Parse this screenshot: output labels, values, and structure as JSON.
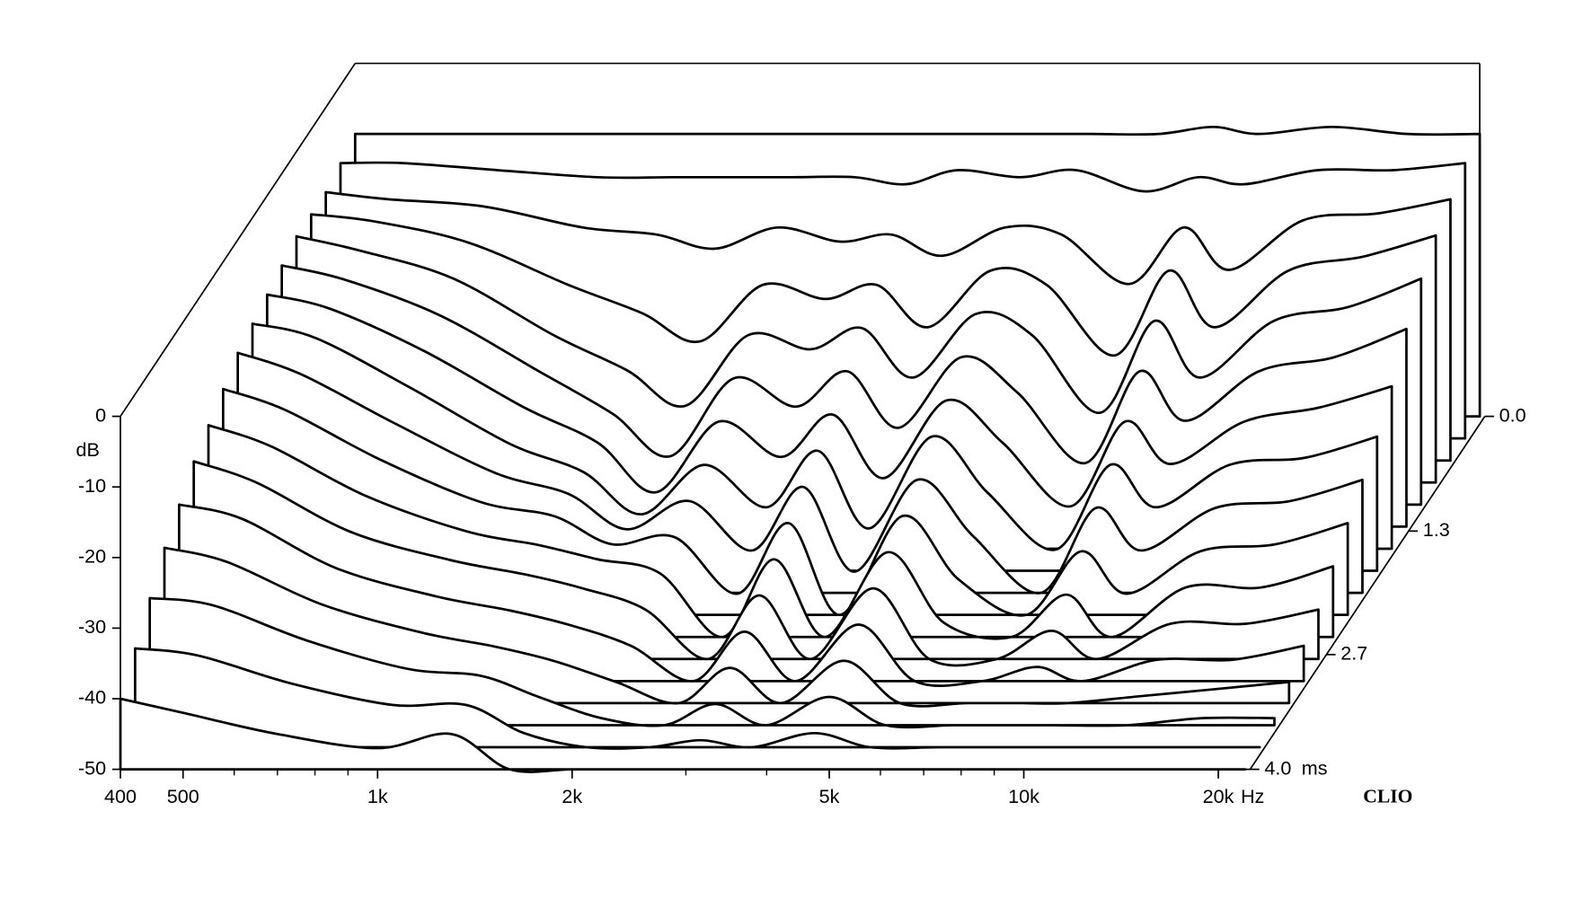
{
  "chart_data": {
    "type": "waterfall",
    "x": [
      400,
      500,
      700,
      1000,
      1300,
      1600,
      2000,
      2500,
      3000,
      3600,
      4500,
      5500,
      7000,
      8500,
      10000,
      13000,
      17000,
      22000
    ],
    "xlim": [
      400,
      22400
    ],
    "log_x": true,
    "xticks": [
      400,
      500,
      {
        "value": 1000,
        "label": "1k"
      },
      {
        "value": 2000,
        "label": "2k"
      },
      {
        "value": 5000,
        "label": "5k"
      },
      {
        "value": 10000,
        "label": "10k"
      },
      {
        "value": 20000,
        "label": "20k"
      }
    ],
    "xminor_ticks": [
      600,
      700,
      800,
      900,
      3000,
      4000,
      6000,
      7000,
      8000,
      9000
    ],
    "x_unit": "Hz",
    "ylabel": "dB",
    "ylim": [
      -50,
      0
    ],
    "yticks": [
      0,
      -10,
      -20,
      -30,
      -40,
      -50
    ],
    "zlim": [
      0,
      4
    ],
    "zticks": [
      {
        "value": 0,
        "label": "0.0"
      },
      {
        "value": 1.3,
        "label": "1.3"
      },
      {
        "value": 2.7,
        "label": "2.7"
      },
      {
        "value": 4,
        "label": "4.0"
      }
    ],
    "z_unit": "ms",
    "color": "#000000",
    "logo": "CLIO",
    "slices": [
      {
        "time": 0,
        "values": [
          -10,
          -10,
          -10,
          -10,
          -10,
          -10,
          -10,
          -10,
          -10,
          -10,
          -10,
          -10,
          -10,
          -9,
          -10,
          -9,
          -10,
          -10
        ]
      },
      {
        "time": 0.25,
        "values": [
          -11,
          -11,
          -12,
          -13,
          -13,
          -13,
          -13,
          -13,
          -14,
          -12,
          -13,
          -12,
          -15,
          -13,
          -14,
          -12,
          -12,
          -11
        ]
      },
      {
        "time": 0.5,
        "values": [
          -12,
          -13,
          -14,
          -17,
          -18,
          -20,
          -17,
          -19,
          -18,
          -21,
          -17,
          -18,
          -25,
          -17,
          -23,
          -16,
          -15,
          -13
        ]
      },
      {
        "time": 0.75,
        "values": [
          -12,
          -13,
          -16,
          -22,
          -26,
          -30,
          -22,
          -24,
          -22,
          -28,
          -20,
          -22,
          -32,
          -20,
          -28,
          -20,
          -18,
          -15
        ]
      },
      {
        "time": 1,
        "values": [
          -12,
          -14,
          -18,
          -26,
          -31,
          -36,
          -26,
          -28,
          -25,
          -32,
          -23,
          -26,
          -37,
          -24,
          -32,
          -24,
          -22,
          -18
        ]
      },
      {
        "time": 1.25,
        "values": [
          -13,
          -15,
          -20,
          -28,
          -34,
          -40,
          -29,
          -33,
          -28,
          -36,
          -26,
          -31,
          -41,
          -28,
          -35,
          -28,
          -26,
          -22
        ]
      },
      {
        "time": 1.5,
        "values": [
          -14,
          -16,
          -22,
          -30,
          -35,
          -42,
          -32,
          -37,
          -31,
          -40,
          -29,
          -35,
          -44,
          -32,
          -38,
          -32,
          -30,
          -27
        ]
      },
      {
        "time": 1.75,
        "values": [
          -15,
          -17,
          -24,
          -32,
          -36,
          -42,
          -35,
          -41,
          -33,
          -44,
          -31,
          -39,
          -47,
          -35,
          -41,
          -35,
          -34,
          -31
        ]
      },
      {
        "time": 2,
        "values": [
          -16,
          -19,
          -26,
          -33,
          -36,
          -41,
          -37,
          -44,
          -35,
          -47,
          -34,
          -42,
          -50,
          -38,
          -44,
          -38,
          -37,
          -34
        ]
      },
      {
        "time": 2.25,
        "values": [
          -18,
          -21,
          -28,
          -34,
          -36,
          -40,
          -39,
          -47,
          -37,
          -50,
          -36,
          -45,
          -50,
          -41,
          -47,
          -41,
          -40,
          -37
        ]
      },
      {
        "time": 2.5,
        "values": [
          -20,
          -23,
          -30,
          -35,
          -37,
          -39,
          -41,
          -50,
          -39,
          -50,
          -38,
          -48,
          -50,
          -44,
          -50,
          -43,
          -43,
          -40
        ]
      },
      {
        "time": 2.75,
        "values": [
          -22,
          -25,
          -32,
          -36,
          -38,
          -40,
          -43,
          -50,
          -41,
          -50,
          -40,
          -50,
          -50,
          -46,
          -50,
          -45,
          -45,
          -43
        ]
      },
      {
        "time": 3,
        "values": [
          -25,
          -27,
          -34,
          -38,
          -40,
          -42,
          -45,
          -50,
          -43,
          -50,
          -42,
          -50,
          -50,
          -48,
          -50,
          -47,
          -47,
          -45
        ]
      },
      {
        "time": 3.25,
        "values": [
          -28,
          -30,
          -36,
          -40,
          -42,
          -44,
          -47,
          -50,
          -45,
          -50,
          -44,
          -50,
          -50,
          -50,
          -50,
          -49,
          -48,
          -47
        ]
      },
      {
        "time": 3.5,
        "values": [
          -32,
          -33,
          -38,
          -42,
          -43,
          -46,
          -49,
          -50,
          -47,
          -50,
          -46,
          -50,
          -50,
          -50,
          -50,
          -50,
          -49,
          -49
        ]
      },
      {
        "time": 3.75,
        "values": [
          -36,
          -37,
          -41,
          -44,
          -44,
          -48,
          -50,
          -50,
          -49,
          -50,
          -48,
          -50,
          -50,
          -50,
          -50,
          -50,
          -50,
          -50
        ]
      },
      {
        "time": 4,
        "values": [
          -40,
          -42,
          -45,
          -47,
          -45,
          -50,
          -50,
          -50,
          -50,
          -50,
          -50,
          -50,
          -50,
          -50,
          -50,
          -50,
          -50,
          -50
        ]
      }
    ]
  }
}
